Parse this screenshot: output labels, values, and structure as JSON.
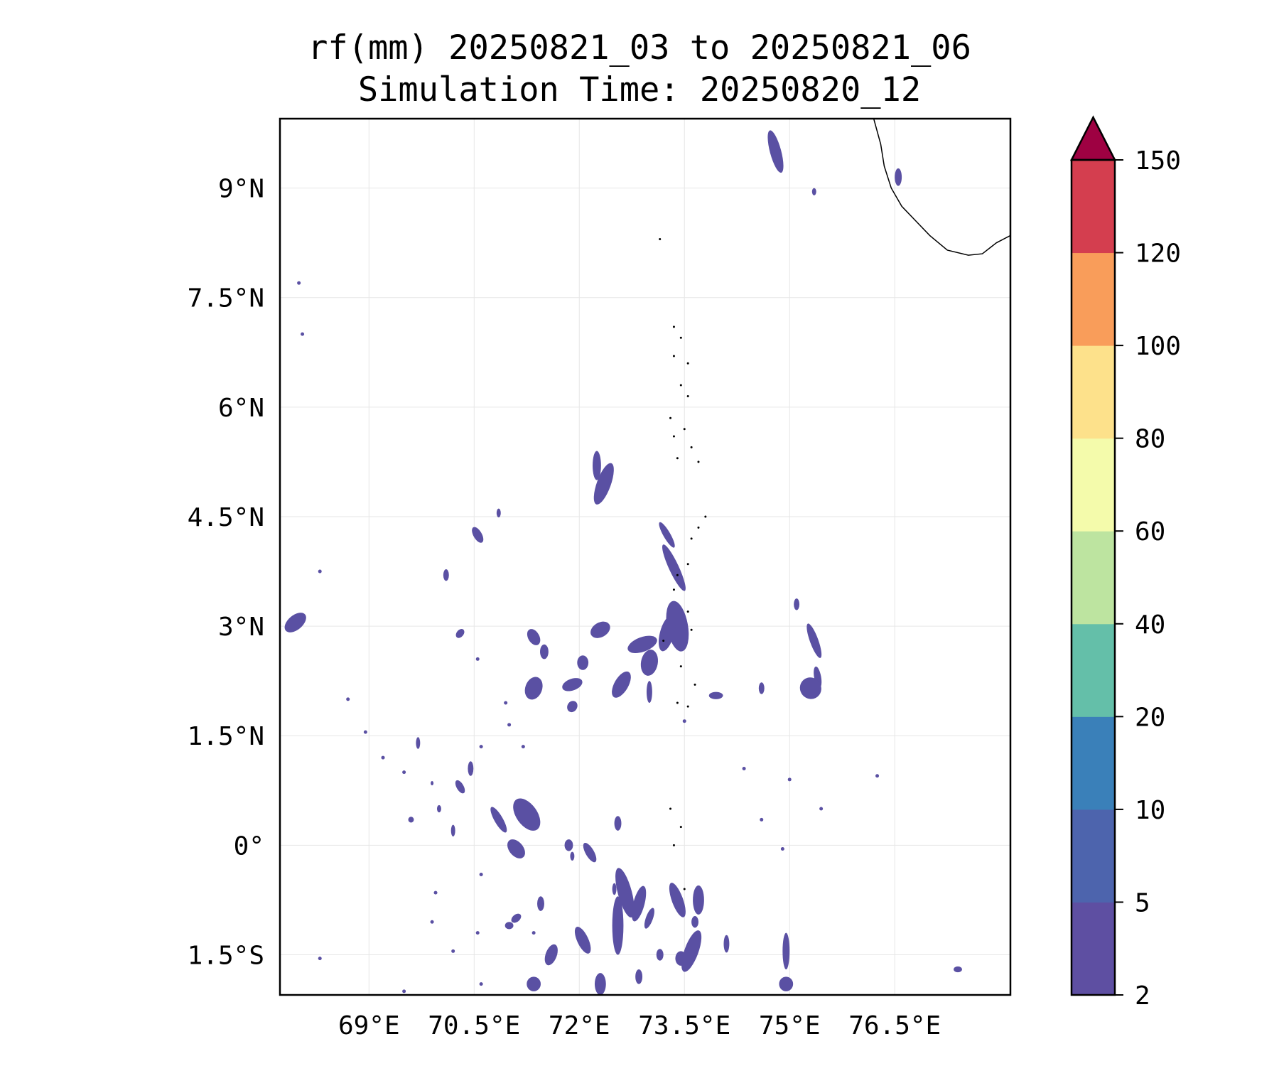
{
  "title_line1": "rf(mm) 20250821_03 to 20250821_06",
  "title_line2": "Simulation Time: 20250820_12",
  "map": {
    "lon_min": 67.73,
    "lon_max": 78.15,
    "lat_min": -2.05,
    "lat_max": 9.95,
    "x_ticks": [
      {
        "value": 69,
        "label": "69°E"
      },
      {
        "value": 70.5,
        "label": "70.5°E"
      },
      {
        "value": 72,
        "label": "72°E"
      },
      {
        "value": 73.5,
        "label": "73.5°E"
      },
      {
        "value": 75,
        "label": "75°E"
      },
      {
        "value": 76.5,
        "label": "76.5°E"
      }
    ],
    "y_ticks": [
      {
        "value": 9,
        "label": "9°N"
      },
      {
        "value": 7.5,
        "label": "7.5°N"
      },
      {
        "value": 6,
        "label": "6°N"
      },
      {
        "value": 4.5,
        "label": "4.5°N"
      },
      {
        "value": 3,
        "label": "3°N"
      },
      {
        "value": 1.5,
        "label": "1.5°N"
      },
      {
        "value": 0,
        "label": "0°"
      },
      {
        "value": -1.5,
        "label": "1.5°S"
      }
    ],
    "grid": true,
    "rain_color": "#5a50a3",
    "coast_color": "#000000"
  },
  "colorbar": {
    "levels": [
      "2",
      "5",
      "10",
      "20",
      "40",
      "60",
      "80",
      "100",
      "120",
      "150"
    ],
    "colors": [
      "#5e4fa2",
      "#4d64ad",
      "#3a80b9",
      "#64bfa9",
      "#bde4a0",
      "#f4fbab",
      "#fde18b",
      "#f99d5a",
      "#d43e4f"
    ],
    "extend_color": "#9e0142",
    "extend": "max"
  }
}
